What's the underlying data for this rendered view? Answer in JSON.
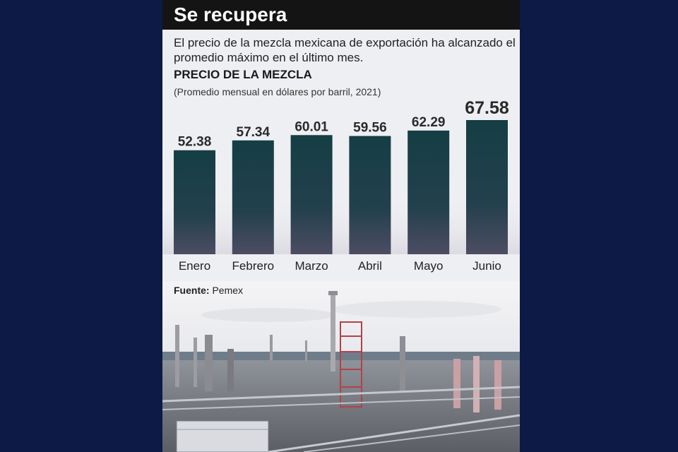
{
  "header": {
    "title": "Se recupera"
  },
  "subtitle": "El precio de la mezcla mexicana de exportación ha alcanzado el promedio máximo en el último mes.",
  "source": {
    "label": "Fuente:",
    "value": "Pemex"
  },
  "colors": {
    "page_background": "#0c1a45",
    "header_background": "#141414",
    "card_background": "#eeeff2",
    "bar_top": "#153e44",
    "bar_bottom": "#4d4d63"
  },
  "chart_data": {
    "type": "bar",
    "title": "PRECIO DE LA MEZCLA",
    "subtitle": "(Promedio mensual en dólares por barril, 2021)",
    "categories": [
      "Enero",
      "Febrero",
      "Marzo",
      "Abril",
      "Mayo",
      "Junio"
    ],
    "values": [
      52.38,
      57.34,
      60.01,
      59.56,
      62.29,
      67.58
    ],
    "value_labels": [
      "52.38",
      "57.34",
      "60.01",
      "59.56",
      "62.29",
      "67.58"
    ],
    "highlight_index": 5,
    "ylim": [
      0,
      67.58
    ],
    "grid": false,
    "xlabel": "",
    "ylabel": ""
  }
}
